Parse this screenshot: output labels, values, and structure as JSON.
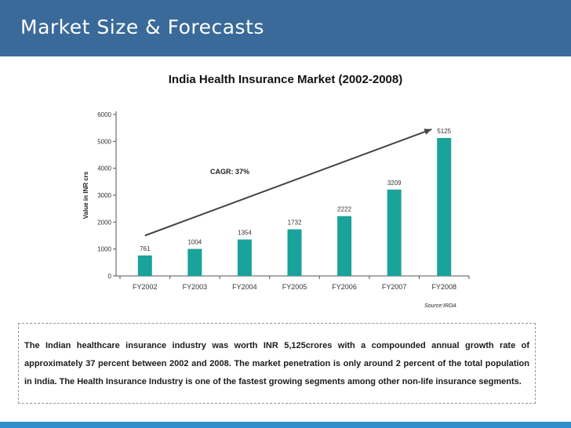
{
  "slide": {
    "title": "Market Size & Forecasts",
    "source": "Source:IRDA",
    "body_text": "The Indian healthcare insurance industry was worth INR 5,125crores with a compounded annual growth rate of approximately 37 percent between 2002 and 2008.   The market penetration is only around 2 percent of the total population in India. The Health Insurance Industry is one of the fastest growing segments among other non-life insurance segments."
  },
  "colors": {
    "header": "#3a6a99",
    "bar": "#1aa39a",
    "footer": "#2f8fc8"
  },
  "chart_data": {
    "type": "bar",
    "title": "India Health Insurance Market (2002-2008)",
    "categories": [
      "FY2002",
      "FY2003",
      "FY2004",
      "FY2005",
      "FY2006",
      "FY2007",
      "FY2008"
    ],
    "values": [
      761,
      1004,
      1354,
      1732,
      2222,
      3209,
      5125
    ],
    "data_labels": [
      "761",
      "1004",
      "1354",
      "1732",
      "2222",
      "3209",
      "5125"
    ],
    "ylabel": "Value in INR crs",
    "xlabel": "",
    "ylim": [
      0,
      6000
    ],
    "yticks": [
      0,
      1000,
      2000,
      3000,
      4000,
      5000,
      6000
    ],
    "grid": false,
    "annotation": "CAGR: 37%",
    "trend_arrow": {
      "from": {
        "category": "FY2002",
        "value": 1500
      },
      "to": {
        "category": "FY2008",
        "value": 5450
      }
    }
  }
}
